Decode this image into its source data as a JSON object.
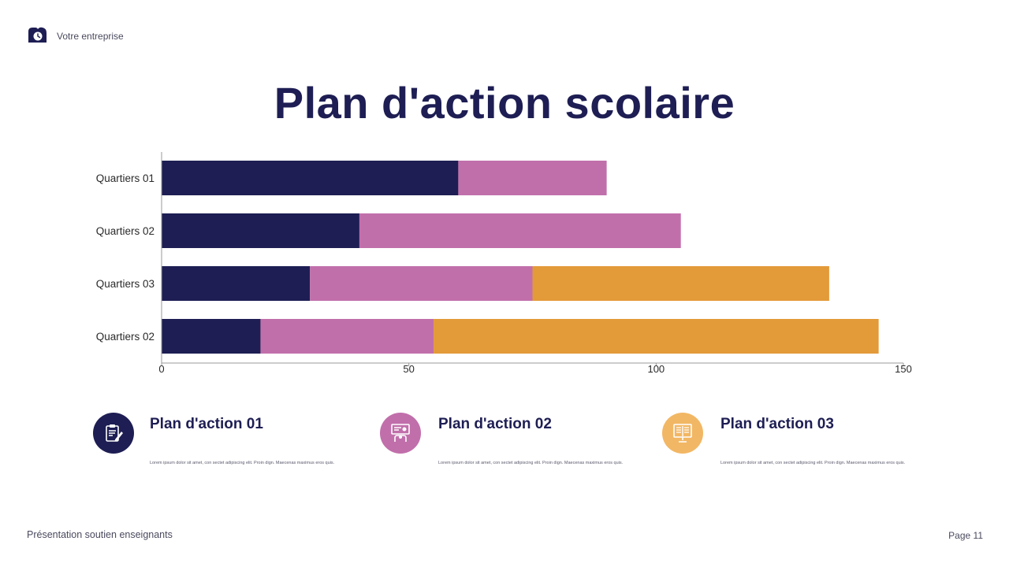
{
  "header": {
    "company": "Votre entreprise",
    "logo_icon": "cloud-clock-icon"
  },
  "title": "Plan d'action scolaire",
  "chart_data": {
    "type": "bar",
    "orientation": "horizontal",
    "stacked": true,
    "categories": [
      "Quartiers 01",
      "Quartiers 02",
      "Quartiers 03",
      "Quartiers 02"
    ],
    "series": [
      {
        "values": [
          60,
          40,
          30,
          20
        ],
        "color": "#1e1e54"
      },
      {
        "values": [
          30,
          65,
          45,
          35
        ],
        "color": "#c16fab"
      },
      {
        "values": [
          0,
          0,
          60,
          90
        ],
        "color": "#e39a39"
      }
    ],
    "xlim": [
      0,
      150
    ],
    "xticks": [
      "0",
      "50",
      "100",
      "150"
    ],
    "grid": false,
    "legend": "none"
  },
  "plans": [
    {
      "title": "Plan d'action 01",
      "text": "Lorem ipsum dolor sit amet, con sectet adipiscing elit. Proin dign. Maecenas maximus eros quis.",
      "color": "#1e1e54",
      "icon": "clipboard-pencil-icon"
    },
    {
      "title": "Plan d'action 02",
      "text": "Lorem ipsum dolor sit amet, con sectet adipiscing elit. Proin dign. Maecenas maximus eros quis.",
      "color": "#c16fab",
      "icon": "presentation-teacher-icon"
    },
    {
      "title": "Plan d'action 03",
      "text": "Lorem ipsum dolor sit amet, con sectet adipiscing elit. Proin dign. Maecenas maximus eros quis.",
      "color": "#f2b764",
      "icon": "open-book-monitor-icon"
    }
  ],
  "footer": {
    "left": "Présentation soutien enseignants",
    "right": "Page 11"
  }
}
